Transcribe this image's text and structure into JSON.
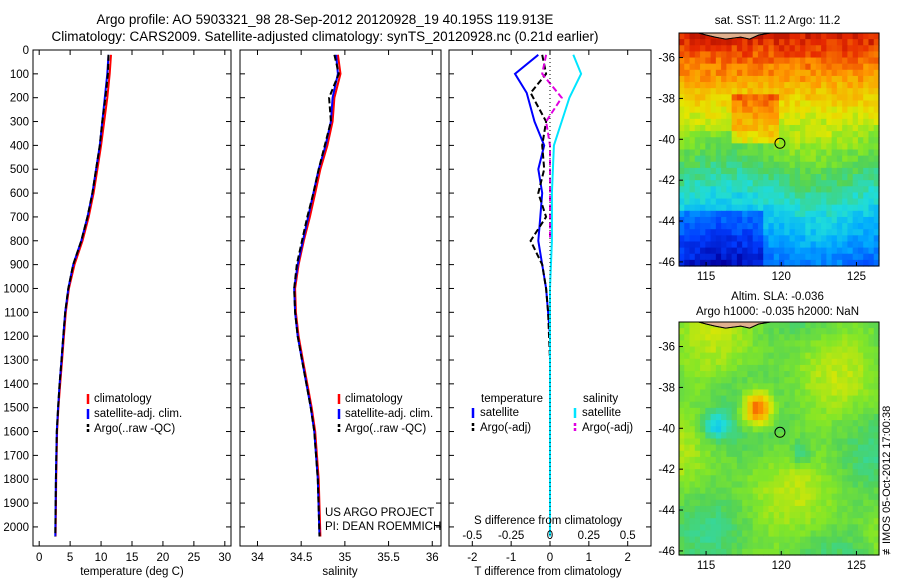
{
  "header": {
    "line1": "Argo profile: AO 5903321_98 28-Sep-2012 20120928_19 40.195S 119.913E",
    "line2": "Climatology: CARS2009. Satellite-adjusted climatology: synTS_20120928.nc (0.21d earlier)"
  },
  "colors": {
    "climatology": "#ff0000",
    "satellite": "#0000ff",
    "argo": "#000000",
    "sal_satellite": "#00e5ff",
    "sal_argo": "#e000e0"
  },
  "project": {
    "line1": "US ARGO PROJECT",
    "line2": "PI: DEAN ROEMMICH"
  },
  "credit": "≢IMOS 05-Oct-2012 17:00:38",
  "chart_data": [
    {
      "type": "line",
      "id": "temperature",
      "xlabel": "temperature (deg C)",
      "xlim": [
        -1,
        31
      ],
      "xticks": [
        0,
        5,
        10,
        15,
        20,
        25,
        30
      ],
      "ylim": [
        0,
        2080
      ],
      "yticks": [
        0,
        100,
        200,
        300,
        400,
        500,
        600,
        700,
        800,
        900,
        1000,
        1100,
        1200,
        1300,
        1400,
        1500,
        1600,
        1700,
        1800,
        1900,
        2000
      ],
      "legend": [
        "climatology",
        "satellite-adj. clim.",
        "Argo(..raw -QC)"
      ],
      "series": [
        {
          "name": "climatology",
          "color": "#ff0000",
          "dash": "",
          "x": [
            11.6,
            11.4,
            11.0,
            10.5,
            10.0,
            9.4,
            8.8,
            8.0,
            7.0,
            5.7,
            4.8,
            4.3,
            4.0,
            3.7,
            3.4,
            3.1,
            2.9,
            2.75,
            2.65
          ],
          "y": [
            20,
            100,
            200,
            300,
            400,
            500,
            600,
            700,
            800,
            900,
            1000,
            1100,
            1200,
            1300,
            1400,
            1500,
            1600,
            1800,
            2040
          ]
        },
        {
          "name": "satellite-adj. clim.",
          "color": "#0000ff",
          "dash": "",
          "x": [
            11.2,
            11.0,
            10.6,
            10.2,
            9.8,
            9.2,
            8.6,
            7.8,
            6.8,
            5.5,
            4.7,
            4.2,
            3.9,
            3.6,
            3.3,
            3.05,
            2.85,
            2.7,
            2.6
          ],
          "y": [
            20,
            100,
            200,
            300,
            400,
            500,
            600,
            700,
            800,
            900,
            1000,
            1100,
            1200,
            1300,
            1400,
            1500,
            1600,
            1800,
            2040
          ]
        },
        {
          "name": "Argo(..raw -QC)",
          "color": "#000000",
          "dash": "6,3",
          "x": [
            11.2,
            11.1,
            10.7,
            10.2,
            9.8,
            9.2,
            8.6,
            7.8,
            6.8,
            5.5,
            4.7,
            4.2,
            3.9,
            3.6,
            3.3,
            3.05,
            2.85,
            2.7,
            2.6
          ],
          "y": [
            20,
            100,
            200,
            300,
            400,
            500,
            600,
            700,
            800,
            900,
            1000,
            1100,
            1200,
            1300,
            1400,
            1500,
            1600,
            1800,
            2040
          ]
        }
      ]
    },
    {
      "type": "line",
      "id": "salinity",
      "xlabel": "salinity",
      "xlim": [
        33.8,
        36.1
      ],
      "xticks": [
        34,
        34.5,
        35,
        35.5,
        36
      ],
      "ylim": [
        0,
        2080
      ],
      "legend": [
        "climatology",
        "satellite-adj. clim.",
        "Argo(..raw -QC)"
      ],
      "series": [
        {
          "name": "climatology",
          "color": "#ff0000",
          "dash": "",
          "x": [
            34.92,
            34.95,
            34.88,
            34.86,
            34.8,
            34.72,
            34.66,
            34.6,
            34.53,
            34.47,
            34.43,
            34.44,
            34.47,
            34.52,
            34.57,
            34.62,
            34.66,
            34.7,
            34.72
          ],
          "y": [
            20,
            100,
            200,
            300,
            400,
            500,
            600,
            700,
            800,
            900,
            1000,
            1100,
            1200,
            1300,
            1400,
            1500,
            1600,
            1800,
            2040
          ]
        },
        {
          "name": "satellite-adj. clim.",
          "color": "#0000ff",
          "dash": "",
          "x": [
            34.9,
            34.92,
            34.86,
            34.84,
            34.78,
            34.7,
            34.64,
            34.58,
            34.52,
            34.46,
            34.42,
            34.43,
            34.46,
            34.51,
            34.56,
            34.61,
            34.65,
            34.69,
            34.71
          ],
          "y": [
            20,
            100,
            200,
            300,
            400,
            500,
            600,
            700,
            800,
            900,
            1000,
            1100,
            1200,
            1300,
            1400,
            1500,
            1600,
            1800,
            2040
          ]
        },
        {
          "name": "Argo(..raw -QC)",
          "color": "#000000",
          "dash": "6,3",
          "x": [
            34.88,
            34.93,
            34.82,
            34.84,
            34.77,
            34.7,
            34.64,
            34.57,
            34.51,
            34.45,
            34.42,
            34.43,
            34.46,
            34.51,
            34.56,
            34.61,
            34.65,
            34.69,
            34.71
          ],
          "y": [
            20,
            100,
            200,
            300,
            400,
            500,
            600,
            700,
            800,
            900,
            1000,
            1100,
            1200,
            1300,
            1400,
            1500,
            1600,
            1800,
            2040
          ]
        }
      ]
    },
    {
      "type": "line",
      "id": "difference",
      "xlabel": "T difference from climatology",
      "xlabel2": "S difference from climatology",
      "xlim": [
        -2.6,
        2.6
      ],
      "xticks": [
        -2,
        -1,
        0,
        1,
        2
      ],
      "sticks": [
        {
          "label": "-0.5",
          "t": -2.0
        },
        {
          "label": "-0.25",
          "t": -1.0
        },
        {
          "label": "0",
          "t": 0
        },
        {
          "label": "0.25",
          "t": 1.0
        },
        {
          "label": "0.5",
          "t": 2.0
        }
      ],
      "ylim": [
        0,
        2080
      ],
      "legend_temperature": {
        "title": "temperature",
        "items": [
          "satellite",
          "Argo(-adj)"
        ]
      },
      "legend_salinity": {
        "title": "salinity",
        "items": [
          "satellite",
          "Argo(-adj)"
        ]
      },
      "series": [
        {
          "name": "T satellite",
          "color": "#0000ff",
          "dash": "",
          "x": [
            -0.3,
            -0.9,
            -0.6,
            -0.4,
            -0.15,
            -0.3,
            -0.2,
            -0.25,
            -0.3,
            -0.2,
            -0.1,
            -0.05,
            0,
            0,
            0
          ],
          "y": [
            20,
            100,
            180,
            300,
            400,
            500,
            600,
            700,
            800,
            900,
            1000,
            1100,
            1200,
            1500,
            2040
          ]
        },
        {
          "name": "T Argo(-adj)",
          "color": "#000000",
          "dash": "6,3",
          "x": [
            -0.2,
            -0.1,
            -0.5,
            -0.1,
            -0.2,
            -0.15,
            -0.3,
            -0.1,
            -0.5,
            -0.2,
            -0.1,
            -0.05,
            0,
            0
          ],
          "y": [
            20,
            100,
            180,
            300,
            400,
            500,
            600,
            700,
            800,
            900,
            1000,
            1100,
            1300,
            2040
          ]
        },
        {
          "name": "S satellite",
          "color": "#00e5ff",
          "dash": "",
          "x": [
            0.6,
            0.8,
            0.5,
            0.3,
            0.1,
            0.05,
            0.05,
            0.0,
            0.0,
            0.0
          ],
          "y": [
            20,
            100,
            200,
            300,
            400,
            600,
            800,
            1000,
            1500,
            2040
          ]
        },
        {
          "name": "S Argo(-adj)",
          "color": "#e000e0",
          "dash": "6,3",
          "x": [
            -0.1,
            -0.2,
            0.3,
            -0.1,
            0.0,
            0.0,
            0.0
          ],
          "y": [
            20,
            100,
            200,
            300,
            400,
            600,
            800
          ]
        }
      ]
    },
    {
      "type": "heatmap",
      "id": "sst-map",
      "title": "sat. SST: 11.2 Argo: 11.2",
      "xlim": [
        113.2,
        126.5
      ],
      "xticks": [
        115,
        120,
        125
      ],
      "ylim": [
        -46.2,
        -34.8
      ],
      "yticks": [
        -36,
        -38,
        -40,
        -42,
        -44,
        -46
      ],
      "argo_position": [
        119.913,
        -40.195
      ]
    },
    {
      "type": "heatmap",
      "id": "sla-map",
      "title_line1": "Altim. SLA: -0.036",
      "title_line2": "Argo h1000: -0.035 h2000: NaN",
      "xlim": [
        113.2,
        126.5
      ],
      "xticks": [
        115,
        120,
        125
      ],
      "ylim": [
        -46.2,
        -34.8
      ],
      "yticks": [
        -36,
        -38,
        -40,
        -42,
        -44,
        -46
      ],
      "argo_position": [
        119.913,
        -40.195
      ]
    }
  ]
}
